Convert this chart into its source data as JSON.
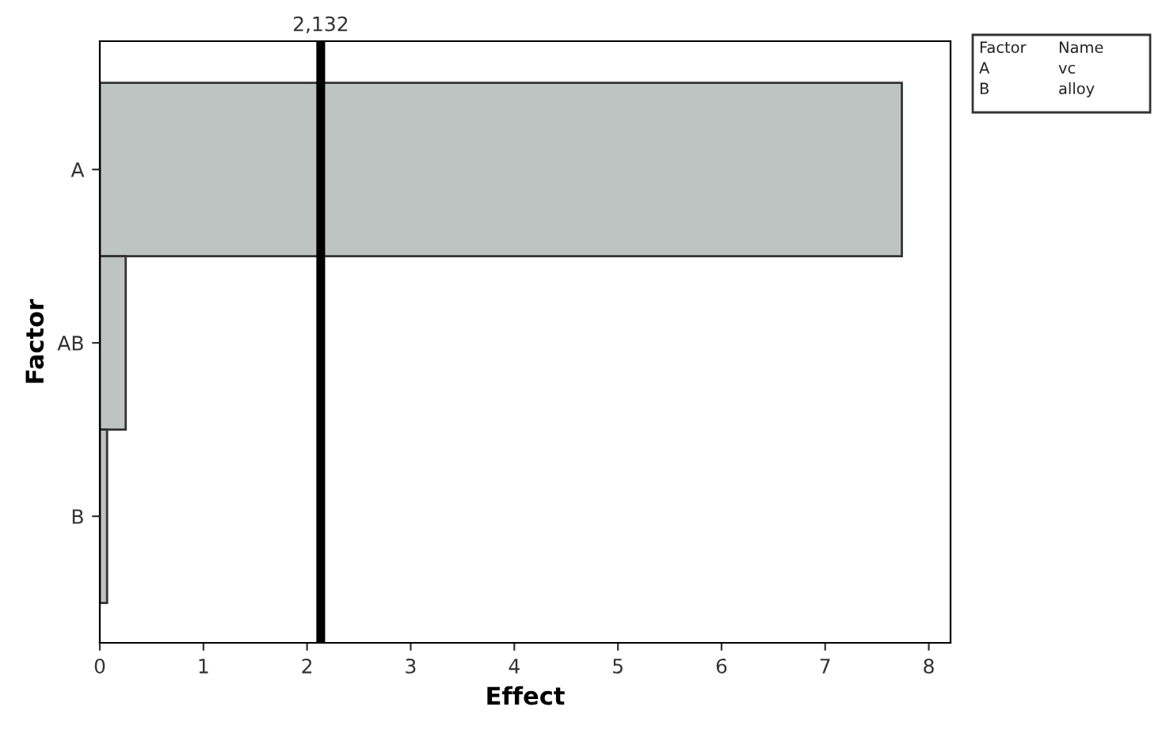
{
  "chart_data": {
    "type": "bar",
    "orientation": "horizontal",
    "ylabel": "Factor",
    "xlabel": "Effect",
    "categories": [
      "A",
      "AB",
      "B"
    ],
    "values": [
      7.74,
      0.25,
      0.07
    ],
    "color": "#bec4c2",
    "xlim": [
      0,
      8.21
    ],
    "xticks": [
      0,
      1,
      2,
      3,
      4,
      5,
      6,
      7,
      8
    ],
    "ref_lines": [
      {
        "axis": "x",
        "value": 2.132,
        "label": "2,132",
        "color": "#000000"
      }
    ],
    "annotations": [
      "Factor",
      "Name",
      "A",
      "vc",
      "B",
      "alloy"
    ],
    "grid": false,
    "legend": false
  }
}
